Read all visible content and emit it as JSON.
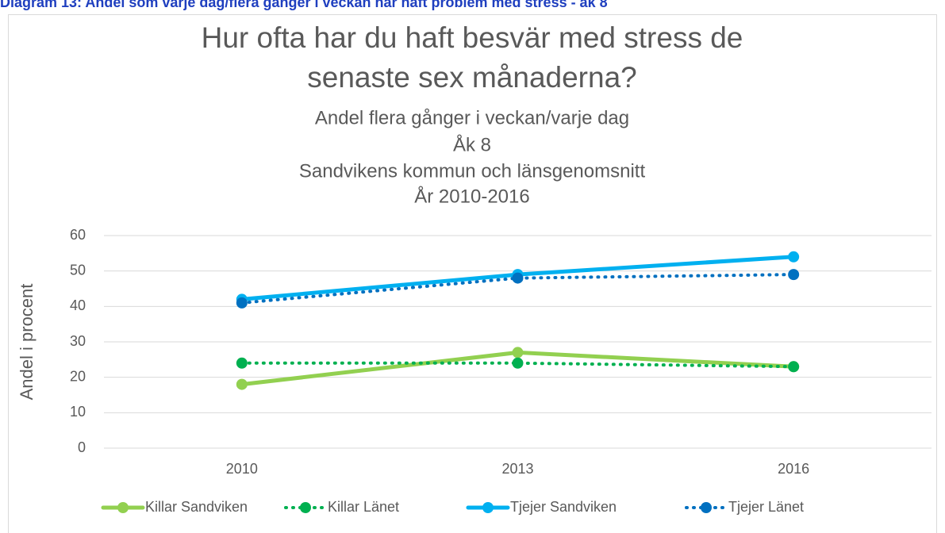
{
  "header": "Diagram 13: Andel som varje dag/flera gånger i veckan har haft problem med stress - åk 8",
  "chart_data": {
    "type": "line",
    "title": [
      "Hur ofta har du haft besvär med stress de",
      "senaste sex månaderna?"
    ],
    "subtitle": [
      "Andel flera gånger i veckan/varje dag",
      "Åk 8",
      "Sandvikens kommun och länsgenomsnitt",
      "År 2010-2016"
    ],
    "y_label": "Andel i procent",
    "categories": [
      "2010",
      "2013",
      "2016"
    ],
    "series": [
      {
        "name": "Killar Sandviken",
        "color": "#92d050",
        "line_style": "solid",
        "values": [
          18,
          27,
          23
        ]
      },
      {
        "name": "Killar Länet",
        "color": "#00b050",
        "line_style": "dotted",
        "values": [
          24,
          24,
          23
        ]
      },
      {
        "name": "Tjejer Sandviken",
        "color": "#00b0f0",
        "line_style": "solid",
        "values": [
          42,
          49,
          54
        ]
      },
      {
        "name": "Tjejer Länet",
        "color": "#0070c0",
        "line_style": "dotted",
        "values": [
          41,
          48,
          49
        ]
      }
    ],
    "ylim": [
      0,
      60
    ],
    "yticks": [
      0,
      10,
      20,
      30,
      40,
      50,
      60
    ],
    "grid": true,
    "legend": "bottom"
  }
}
